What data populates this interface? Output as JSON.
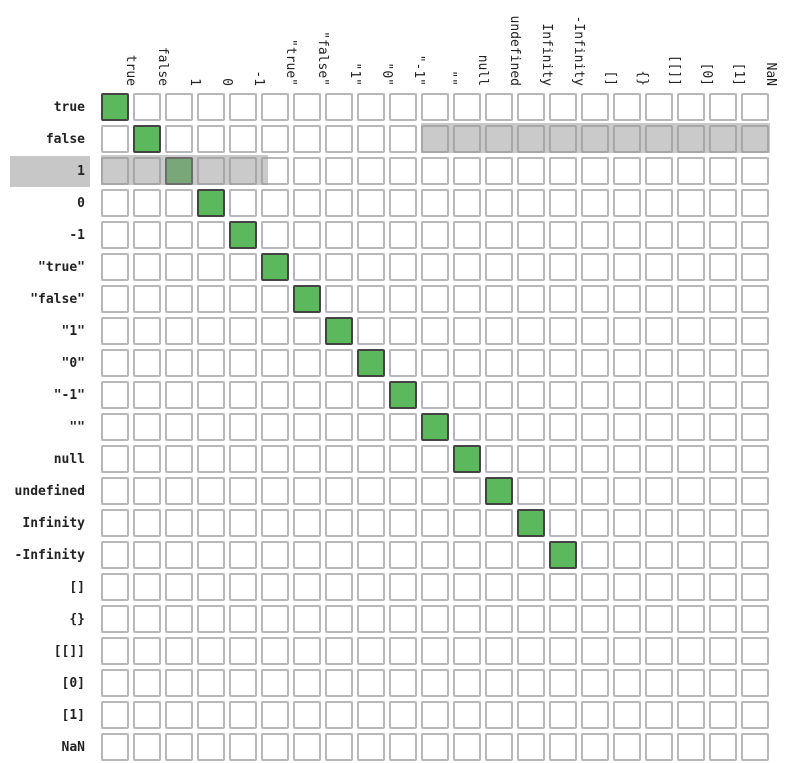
{
  "labels": [
    "true",
    "false",
    "1",
    "0",
    "-1",
    "\"true\"",
    "\"false\"",
    "\"1\"",
    "\"0\"",
    "\"-1\"",
    "\"\"",
    "null",
    "undefined",
    "Infinity",
    "-Infinity",
    "[]",
    "{}",
    "[[]]",
    "[0]",
    "[1]",
    "NaN"
  ],
  "equal_pairs": [
    [
      0,
      0
    ],
    [
      1,
      1
    ],
    [
      2,
      2
    ],
    [
      3,
      3
    ],
    [
      4,
      4
    ],
    [
      5,
      5
    ],
    [
      6,
      6
    ],
    [
      7,
      7
    ],
    [
      8,
      8
    ],
    [
      9,
      9
    ],
    [
      10,
      10
    ],
    [
      11,
      11
    ],
    [
      12,
      12
    ],
    [
      13,
      13
    ],
    [
      14,
      14
    ]
  ],
  "highlighted_row": 2,
  "colors": {
    "equal": "#5cb85c",
    "cell_border": "#b8b8b8",
    "equal_border": "#444444",
    "highlight": "#c7c7c7"
  }
}
